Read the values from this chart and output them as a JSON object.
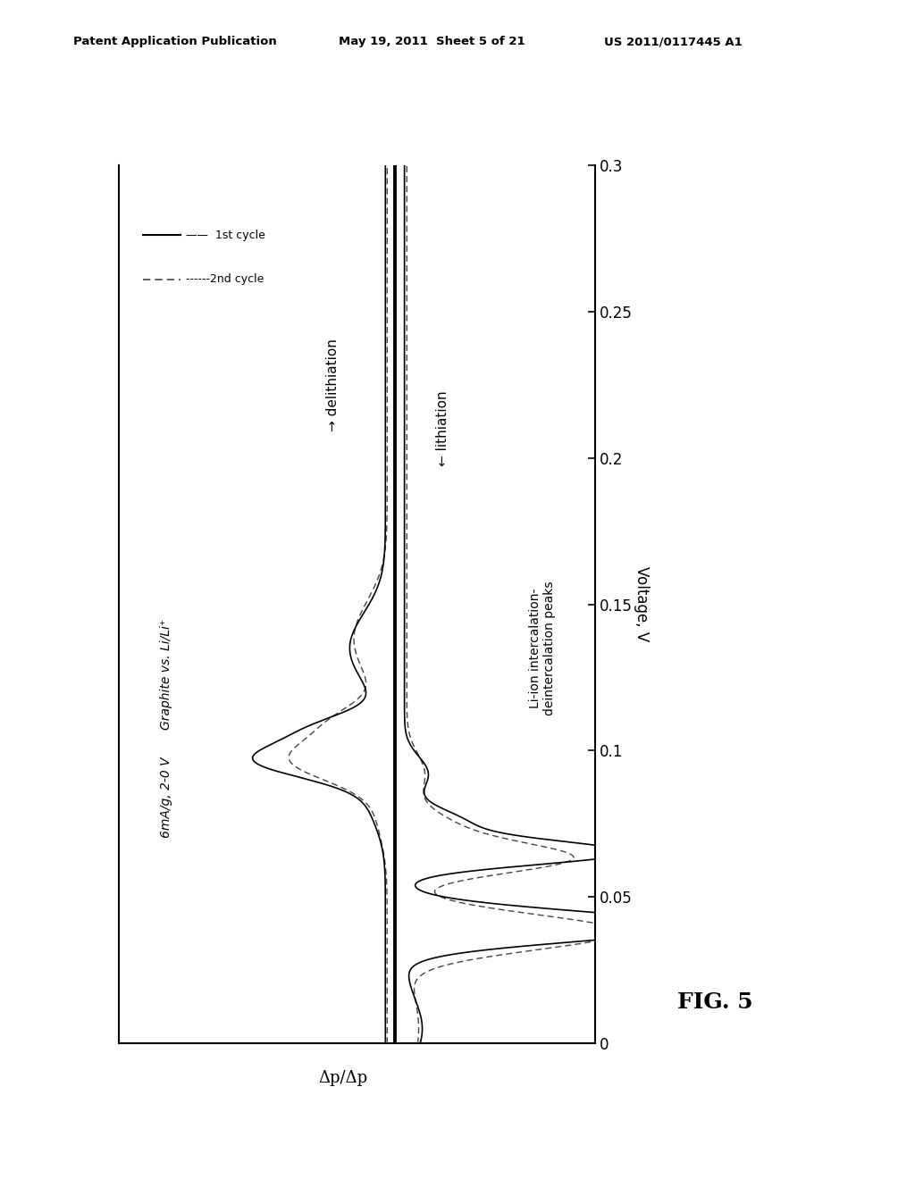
{
  "header_left": "Patent Application Publication",
  "header_mid": "May 19, 2011  Sheet 5 of 21",
  "header_right": "US 2011/0117445 A1",
  "fig_label": "FIG. 5",
  "xlabel": "Δp/Δp",
  "ylabel": "Voltage, V",
  "ylim": [
    0,
    0.3
  ],
  "yticks": [
    0,
    0.05,
    0.1,
    0.15,
    0.2,
    0.25,
    0.3
  ],
  "annotation_graphite_line1": "Graphite vs. Li/Li⁺",
  "annotation_graphite_line2": "6mA/g, 2-0 V",
  "annotation_delithiation": "→ delithiation",
  "annotation_lithiation": "← lithiation",
  "annotation_peaks_line1": "Li-ion intercalation-",
  "annotation_peaks_line2": "deintercalation peaks",
  "legend_1st": "1st cycle",
  "legend_2nd": "2nd cycle",
  "background_color": "#ffffff",
  "line_color_solid": "#000000",
  "line_color_dashed": "#444444",
  "vline_rel": 0.58
}
